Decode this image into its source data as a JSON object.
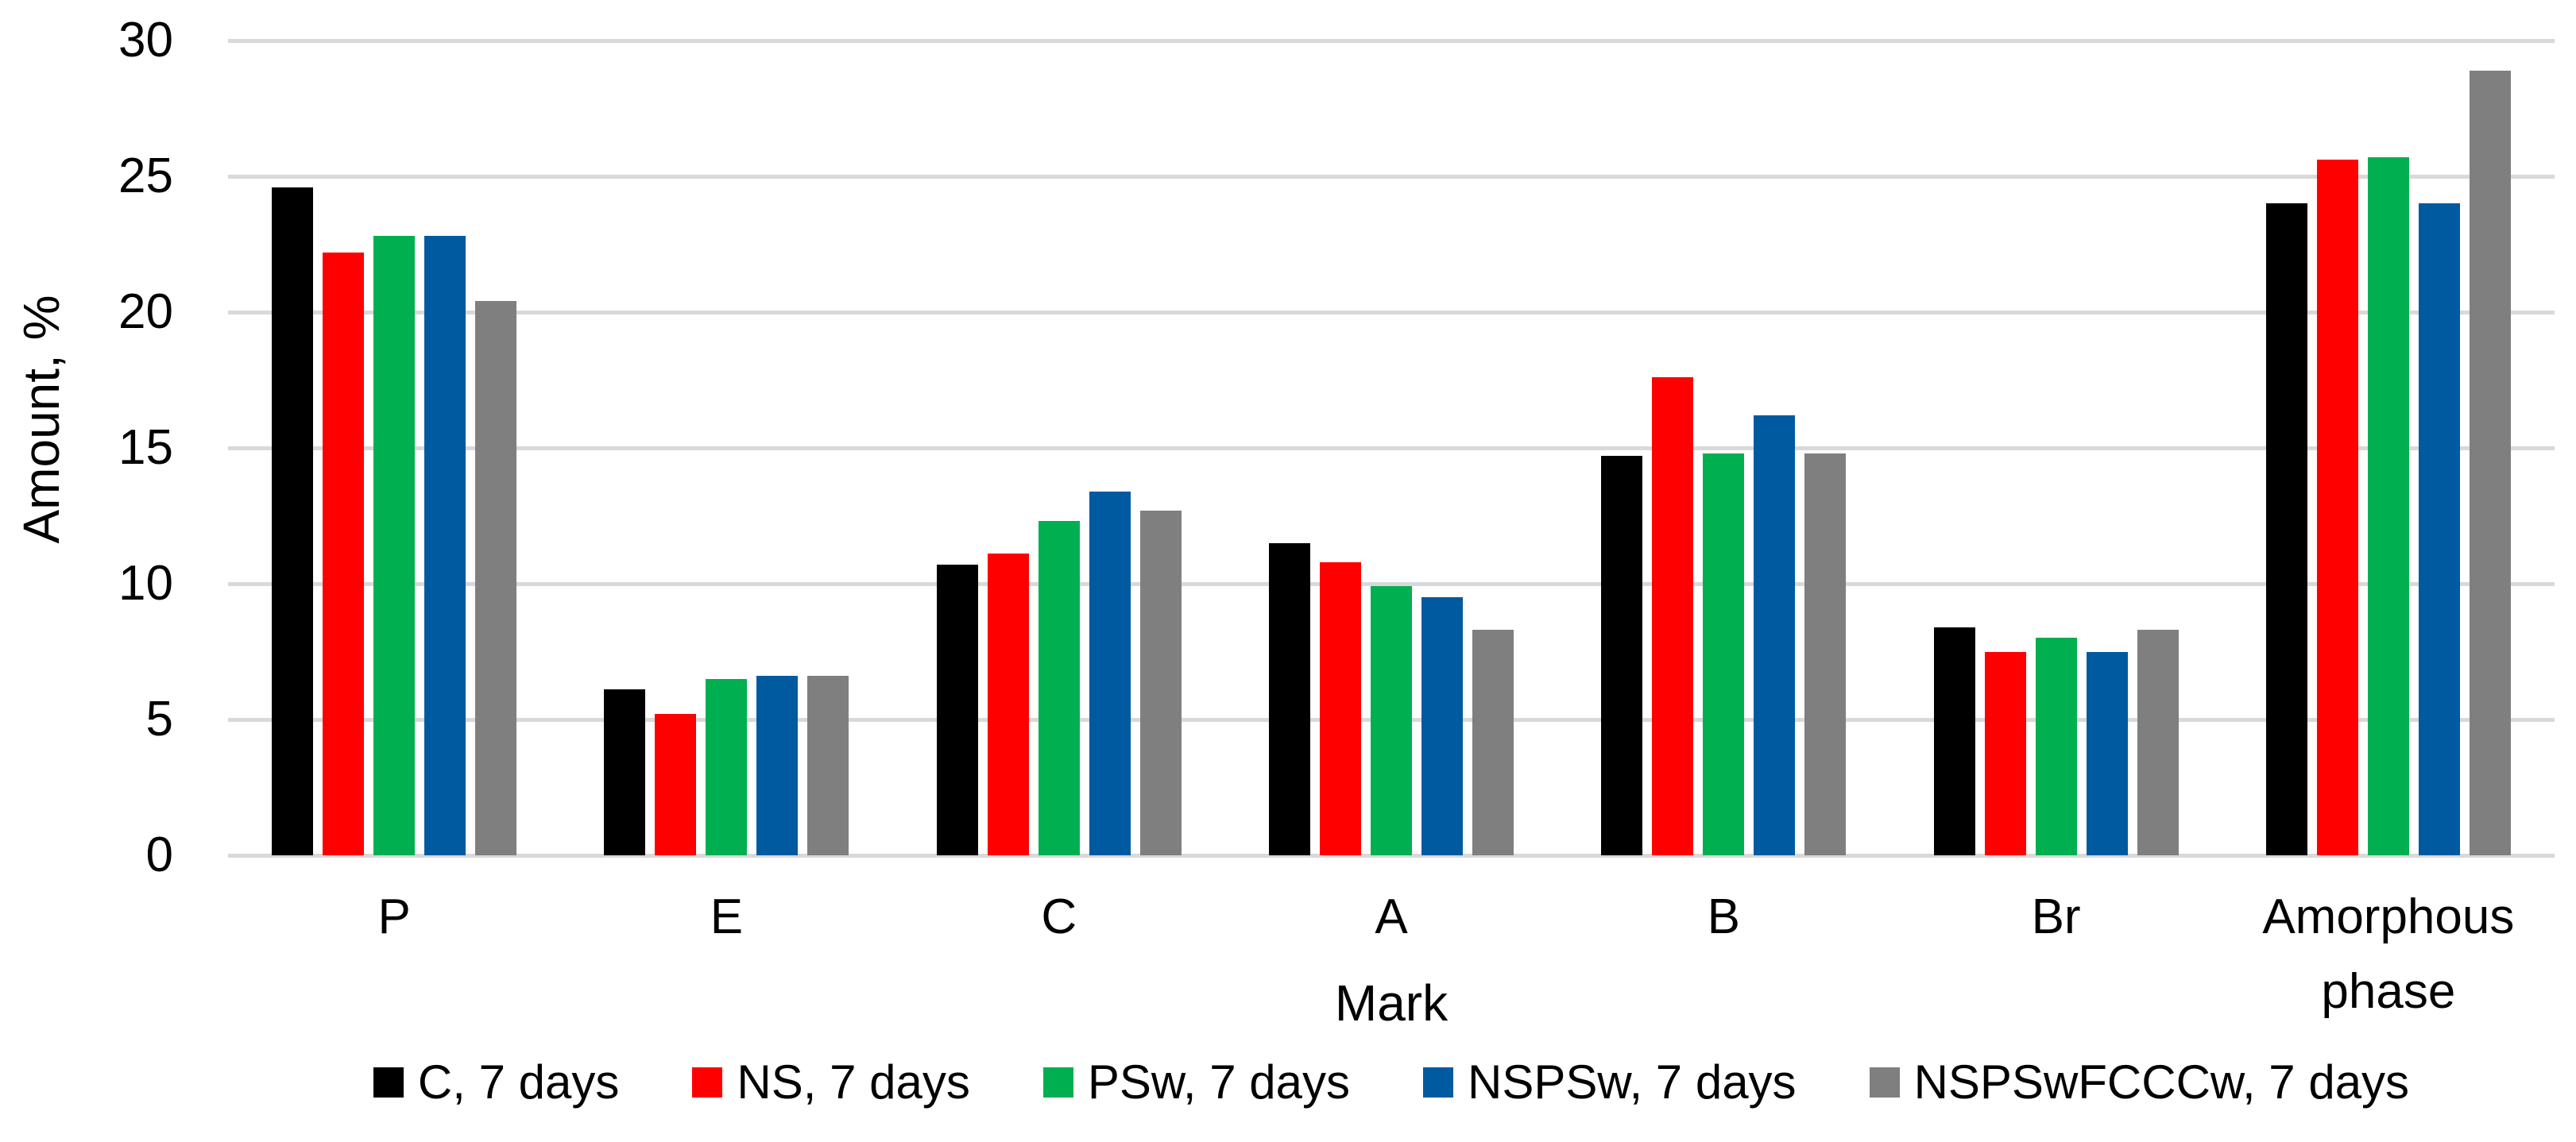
{
  "chart_data": {
    "type": "bar",
    "title": "",
    "xlabel": "Mark",
    "ylabel": "Amount, %",
    "ylim": [
      0,
      30
    ],
    "ytick_interval": 5,
    "yticks": [
      0,
      5,
      10,
      15,
      20,
      25,
      30
    ],
    "grid": true,
    "gridline_color": "#D9D9D9",
    "background": "#FFFFFF",
    "legend_position": "bottom",
    "categories": [
      "P",
      "E",
      "C",
      "A",
      "B",
      "Br",
      "Amorphous phase"
    ],
    "series": [
      {
        "name": "C, 7 days",
        "color": "#000000",
        "values": [
          24.6,
          6.1,
          10.7,
          11.5,
          14.7,
          8.4,
          24.0
        ]
      },
      {
        "name": "NS, 7 days",
        "color": "#FF0000",
        "values": [
          22.2,
          5.2,
          11.1,
          10.8,
          17.6,
          7.5,
          25.6
        ]
      },
      {
        "name": "PSw, 7 days",
        "color": "#00B050",
        "values": [
          22.8,
          6.5,
          12.3,
          9.9,
          14.8,
          8.0,
          25.7
        ]
      },
      {
        "name": "NSPSw, 7 days",
        "color": "#005AA0",
        "values": [
          22.8,
          6.6,
          13.4,
          9.5,
          16.2,
          7.5,
          24.0
        ]
      },
      {
        "name": "NSPSwFCCCw, 7 days",
        "color": "#7F7F7F",
        "values": [
          20.4,
          6.6,
          12.7,
          8.3,
          14.8,
          8.3,
          28.9
        ]
      }
    ]
  }
}
